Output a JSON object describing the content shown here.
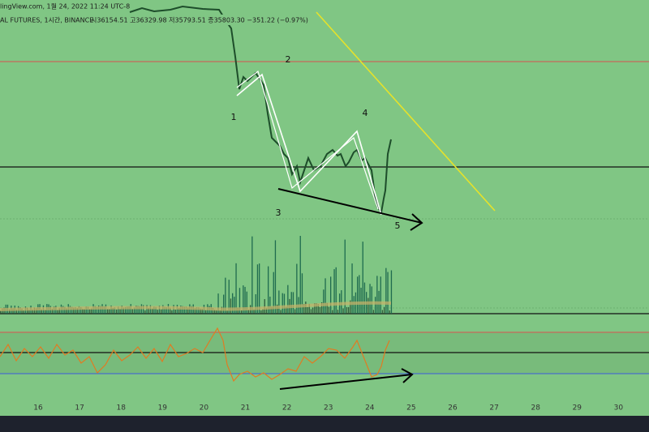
{
  "header": {
    "source": "lingView.com, 1월 24, 2022 11:24 UTC-8",
    "symbol": "AL FUTURES, 1시간, BINANCE",
    "ohlc": "시36154.51 고36329.98 저35793.51 종35803.30 −351.22 (−0.97%)"
  },
  "wave_labels": [
    "1",
    "2",
    "3",
    "4",
    "5"
  ],
  "x_axis": [
    "16",
    "17",
    "18",
    "19",
    "20",
    "21",
    "22",
    "23",
    "24",
    "25",
    "26",
    "27",
    "28",
    "29",
    "30"
  ]
}
